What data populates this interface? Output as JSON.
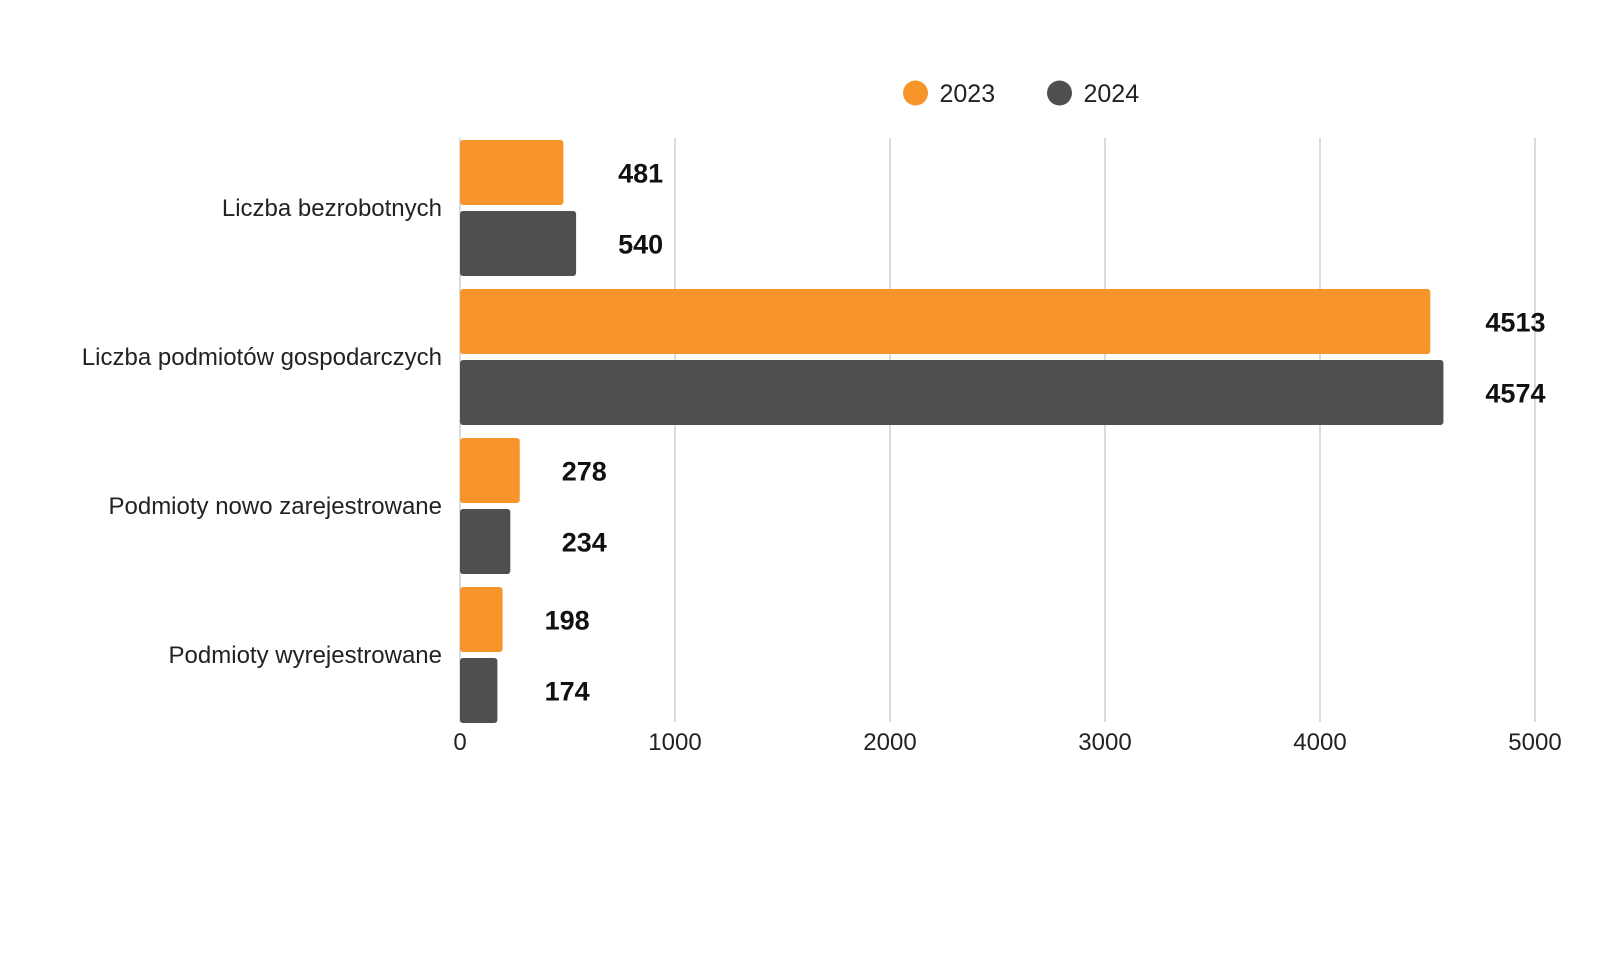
{
  "chart_data": {
    "type": "bar",
    "orientation": "horizontal",
    "categories": [
      "Liczba bezrobotnych",
      "Liczba podmiotów gospodarczych",
      "Podmioty nowo zarejestrowane",
      "Podmioty wyrejestrowane"
    ],
    "series": [
      {
        "name": "2023",
        "color": "#f7952b",
        "values": [
          481,
          4513,
          278,
          198
        ]
      },
      {
        "name": "2024",
        "color": "#4f4f51",
        "values": [
          540,
          4574,
          234,
          174
        ]
      }
    ],
    "xlim": [
      0,
      5000
    ],
    "xticks": [
      0,
      1000,
      2000,
      3000,
      4000,
      5000
    ],
    "grid": "vertical",
    "legend_position": "top",
    "data_labels": true
  }
}
